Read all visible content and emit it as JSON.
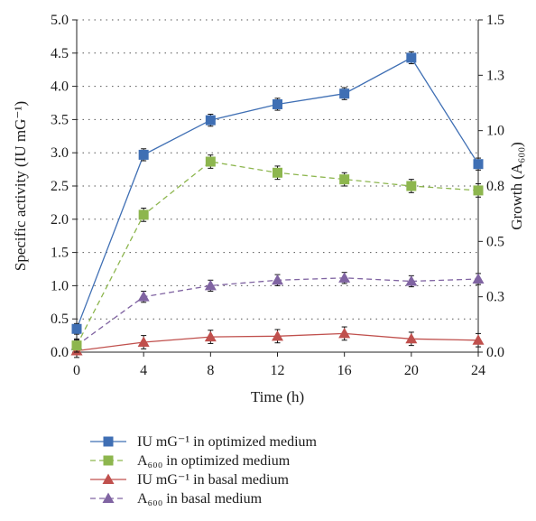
{
  "chart_data": {
    "type": "line",
    "x": [
      0,
      4,
      8,
      12,
      16,
      20,
      24
    ],
    "xlabel": "Time (h)",
    "ylabel_left": "Specific activity (IU mG⁻¹)",
    "ylabel_right": "Growth (A₆₀₀)",
    "xlim": [
      0,
      24
    ],
    "ylim_left": [
      0.0,
      5.0
    ],
    "ylim_right": [
      0.0,
      1.5
    ],
    "x_ticks": [
      "0",
      "4",
      "8",
      "12",
      "16",
      "20",
      "24"
    ],
    "y_left_ticks": [
      "0.0",
      "0.5",
      "1.0",
      "1.5",
      "2.0",
      "2.5",
      "3.0",
      "3.5",
      "4.0",
      "4.5",
      "5.0"
    ],
    "y_right_ticks": [
      "0.0",
      "0.3",
      "0.5",
      "0.8",
      "1.0",
      "1.3",
      "1.5"
    ],
    "grid": "dotted horizontal",
    "legend_position": "bottom",
    "series": [
      {
        "name": "IU mG⁻¹ in optimized medium",
        "axis": "left",
        "values": [
          0.35,
          2.97,
          3.49,
          3.73,
          3.89,
          4.43,
          2.83
        ],
        "errors": [
          0.08,
          0.09,
          0.09,
          0.09,
          0.09,
          0.09,
          0.09
        ],
        "color": "#3F6FB4",
        "marker": "square",
        "line": "solid"
      },
      {
        "name": "A₆₀₀ in optimized medium",
        "axis": "right",
        "values": [
          0.03,
          0.62,
          0.86,
          0.81,
          0.78,
          0.75,
          0.73
        ],
        "errors": [
          0.03,
          0.03,
          0.03,
          0.03,
          0.03,
          0.03,
          0.03
        ],
        "color": "#8DB64E",
        "marker": "square",
        "line": "dashed"
      },
      {
        "name": "IU mG⁻¹ in basal medium",
        "axis": "left",
        "values": [
          0.02,
          0.15,
          0.23,
          0.24,
          0.28,
          0.2,
          0.18
        ],
        "errors": [
          0.1,
          0.1,
          0.1,
          0.1,
          0.1,
          0.1,
          0.1
        ],
        "color": "#C0504D",
        "marker": "triangle",
        "line": "solid"
      },
      {
        "name": "A₆₀₀ in basal medium",
        "axis": "right",
        "values": [
          0.03,
          0.25,
          0.3,
          0.325,
          0.335,
          0.32,
          0.33
        ],
        "errors": [
          0.025,
          0.025,
          0.025,
          0.025,
          0.025,
          0.025,
          0.025
        ],
        "color": "#8064A2",
        "marker": "triangle",
        "line": "dashed"
      }
    ]
  }
}
